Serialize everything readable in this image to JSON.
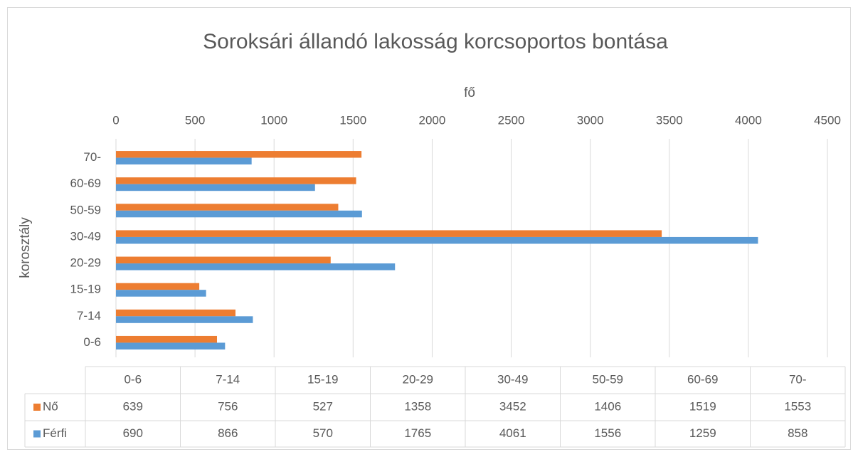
{
  "chart_data": {
    "type": "bar",
    "orientation": "horizontal",
    "title": "Soroksári állandó lakosság korcsoportos bontása",
    "x_label": "fő",
    "y_label": "korosztály",
    "categories": [
      "0-6",
      "7-14",
      "15-19",
      "20-29",
      "30-49",
      "50-59",
      "60-69",
      "70-"
    ],
    "series": [
      {
        "name": "Nő",
        "color": "#ed7d31",
        "values": [
          639,
          756,
          527,
          1358,
          3452,
          1406,
          1519,
          1553
        ]
      },
      {
        "name": "Férfi",
        "color": "#5b9bd5",
        "values": [
          690,
          866,
          570,
          1765,
          4061,
          1556,
          1259,
          858
        ]
      }
    ],
    "xlim": [
      0,
      4500
    ],
    "xticks": [
      0,
      500,
      1000,
      1500,
      2000,
      2500,
      3000,
      3500,
      4000,
      4500
    ],
    "grid": true,
    "data_table": true
  }
}
